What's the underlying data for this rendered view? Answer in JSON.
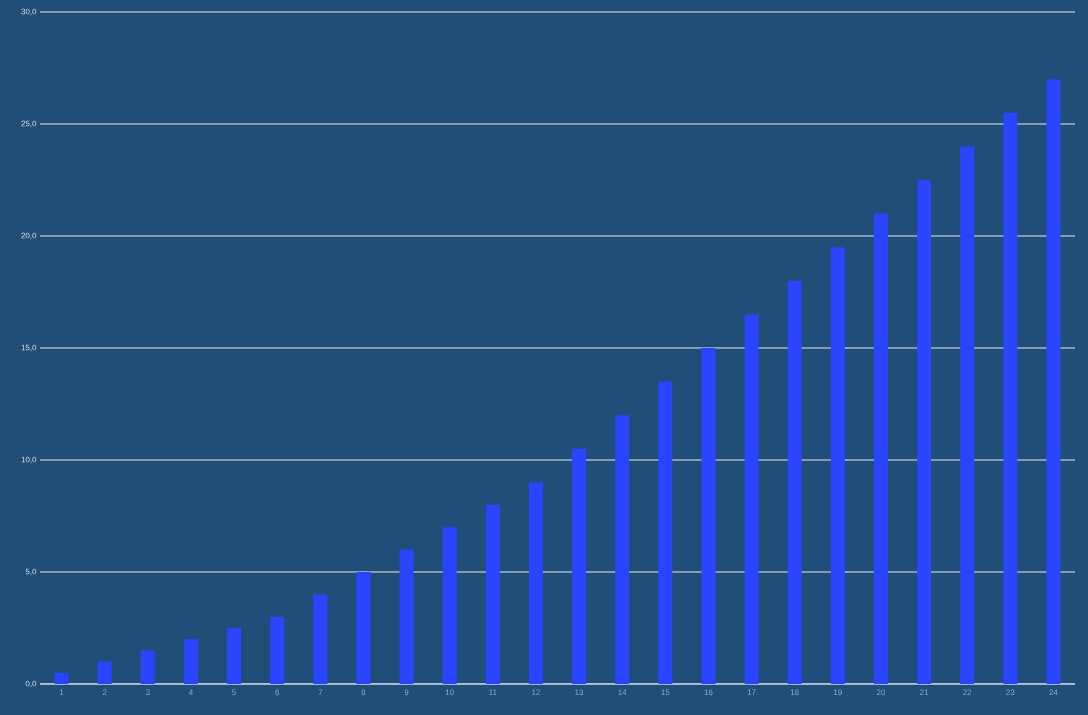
{
  "chart_data": {
    "type": "bar",
    "categories": [
      "1",
      "2",
      "3",
      "4",
      "5",
      "6",
      "7",
      "8",
      "9",
      "10",
      "11",
      "12",
      "13",
      "14",
      "15",
      "16",
      "17",
      "18",
      "19",
      "20",
      "21",
      "22",
      "23",
      "24"
    ],
    "values": [
      0.5,
      1,
      1.5,
      2,
      2.5,
      3,
      4,
      5,
      6,
      7,
      8,
      9,
      10.5,
      12,
      13.5,
      15,
      16.5,
      18,
      19.5,
      21,
      22.5,
      24,
      25.5,
      27
    ],
    "color": "#2a45ff",
    "ylim": [
      0,
      30
    ],
    "yticks": [
      {
        "value": 0,
        "label": "0,0"
      },
      {
        "value": 5,
        "label": "5,0"
      },
      {
        "value": 10,
        "label": "10,0"
      },
      {
        "value": 15,
        "label": "15,0"
      },
      {
        "value": 20,
        "label": "20,0"
      },
      {
        "value": 25,
        "label": "25,0"
      },
      {
        "value": 30,
        "label": "30,0"
      }
    ],
    "grid": "y"
  }
}
